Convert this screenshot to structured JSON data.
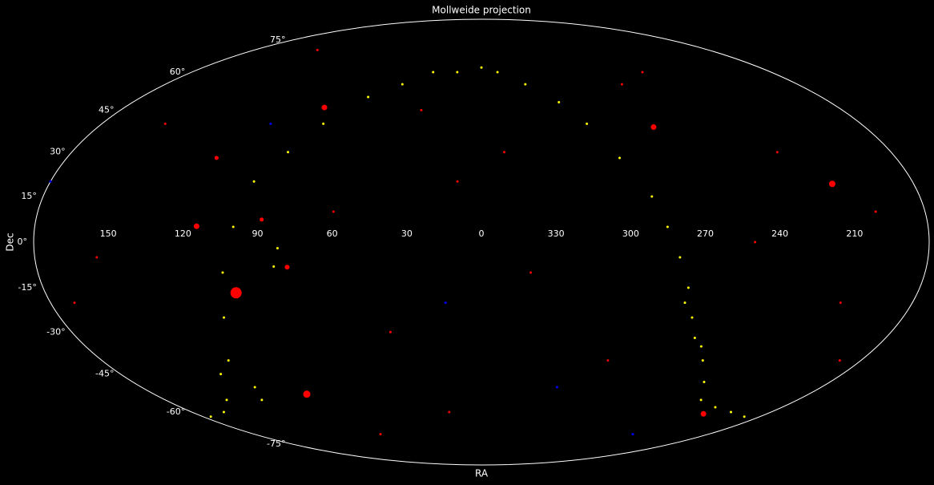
{
  "chart_data": {
    "type": "scatter",
    "projection": "mollweide",
    "title": "Mollweide projection",
    "x_label": "RA",
    "y_label": "Dec",
    "background": "#000000",
    "frame_color": "#ffffff",
    "xlim": [
      0,
      360
    ],
    "ylim": [
      -90,
      90
    ],
    "xticks": [
      150,
      120,
      90,
      60,
      30,
      0,
      330,
      300,
      270,
      240,
      210
    ],
    "yticks": [
      {
        "value": -75,
        "label": "-75°"
      },
      {
        "value": -60,
        "label": "-60°"
      },
      {
        "value": -45,
        "label": "-45°"
      },
      {
        "value": -30,
        "label": "-30°"
      },
      {
        "value": -15,
        "label": "-15°"
      },
      {
        "value": 0,
        "label": "0°"
      },
      {
        "value": 15,
        "label": "15°"
      },
      {
        "value": 30,
        "label": "30°"
      },
      {
        "value": 45,
        "label": "45°"
      },
      {
        "value": 60,
        "label": "60°"
      },
      {
        "value": 75,
        "label": "75°"
      }
    ],
    "series": [
      {
        "color": "#ff0000",
        "x": [
          10,
          40,
          60,
          150,
          170,
          200,
          230,
          250,
          300,
          340,
          20,
          130,
          260,
          190,
          80,
          350,
          30,
          210,
          88.8,
          155,
          280,
          115
        ],
        "y": [
          20,
          -30,
          10,
          40,
          -20,
          10,
          30,
          0,
          -40,
          -10,
          -60,
          70,
          60,
          -40,
          -70,
          30,
          45,
          -20,
          7.4,
          -5,
          55,
          28
        ],
        "sizes": [
          3,
          3,
          3,
          3,
          3,
          3,
          3,
          3,
          3,
          3,
          3,
          3,
          3,
          3,
          3,
          3,
          3,
          3,
          5,
          3,
          3,
          5
        ]
      },
      {
        "color": "#0000ff",
        "x": [
          15,
          180,
          320,
          100,
          240
        ],
        "y": [
          -20,
          20,
          -50,
          40,
          -70
        ],
        "sizes": [
          3,
          3,
          3,
          3,
          3
        ]
      },
      {
        "color": "#ffff00",
        "x": [
          0,
          15,
          30,
          45,
          60,
          75,
          85,
          95,
          100,
          105,
          110,
          120,
          130,
          145,
          160,
          175,
          190,
          205,
          220,
          235,
          245,
          255,
          265,
          270,
          275,
          280,
          285,
          290,
          300,
          310,
          320,
          335,
          350,
          120,
          125,
          260,
          275,
          82,
          84
        ],
        "y": [
          62,
          60,
          60,
          55,
          50,
          40,
          30,
          20,
          5,
          -10,
          -25,
          -40,
          -45,
          -55,
          -60,
          -62,
          -62,
          -60,
          -58,
          -55,
          -48,
          -40,
          -32,
          -25,
          -15,
          -5,
          5,
          15,
          28,
          40,
          48,
          55,
          60,
          -50,
          -55,
          -35,
          -20,
          -2,
          -8
        ],
        "sizes": [
          3,
          3,
          3,
          3,
          3,
          3,
          3,
          3,
          3,
          3,
          3,
          3,
          3,
          3,
          3,
          3,
          3,
          3,
          3,
          3,
          3,
          3,
          3,
          3,
          3,
          3,
          3,
          3,
          3,
          3,
          3,
          3,
          3,
          3,
          3,
          3,
          3,
          3,
          3
        ]
      },
      {
        "color": "#ff0000",
        "x": [
          101.3,
          96,
          213.9,
          114.8,
          79.2,
          279.2,
          78.6,
          219.9
        ],
        "y": [
          -16.7,
          -52.7,
          19.2,
          5.2,
          46,
          38.8,
          -8.2,
          -60.8
        ],
        "sizes": [
          14,
          9,
          8,
          7,
          7,
          7,
          6,
          7
        ]
      }
    ]
  }
}
